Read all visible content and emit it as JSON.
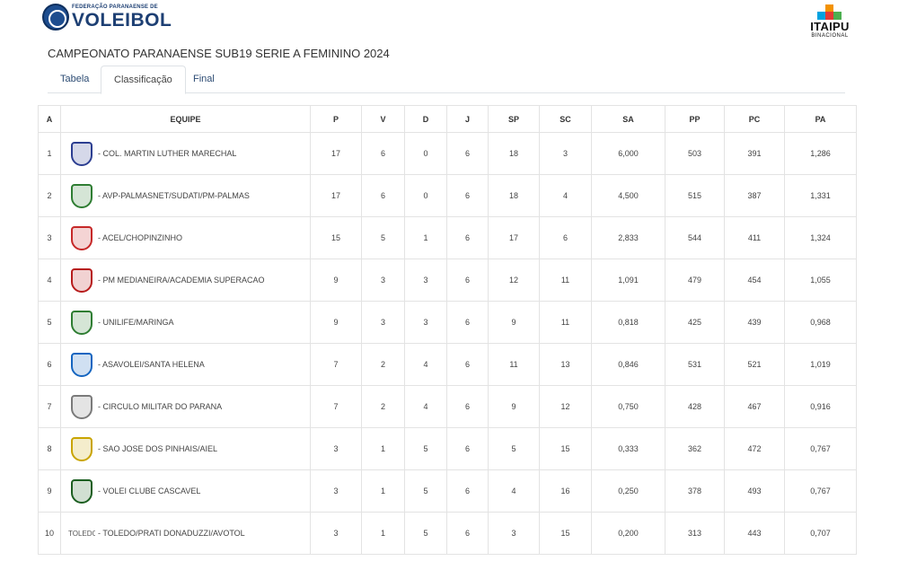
{
  "header": {
    "fpv_small": "FEDERAÇÃO PARANAENSE DE",
    "fpv_big": "VOLEIBOL",
    "sponsor_name": "ITAIPU",
    "sponsor_sub": "BINACIONAL"
  },
  "title": "CAMPEONATO PARANAENSE SUB19 SERIE A FEMININO 2024",
  "tabs": [
    {
      "label": "Tabela",
      "active": false
    },
    {
      "label": "Classificação",
      "active": true
    },
    {
      "label": "Final",
      "active": false
    }
  ],
  "columns": {
    "team": [
      "A",
      "EQUIPE"
    ],
    "stats": [
      "P",
      "V",
      "D",
      "J",
      "SP",
      "SC",
      "SA",
      "PP",
      "PC",
      "PA"
    ]
  },
  "rows": [
    {
      "pos": "1",
      "team": "- COL. MARTIN LUTHER MARECHAL",
      "logo_icon": "volleyball-v-logo-icon",
      "logo_color": "#2c3e91",
      "stats": [
        "17",
        "6",
        "0",
        "6",
        "18",
        "3",
        "6,000",
        "503",
        "391",
        "1,286"
      ]
    },
    {
      "pos": "2",
      "team": "- AVP-PALMASNET/SUDATI/PM-PALMAS",
      "logo_icon": "avp-wings-logo-icon",
      "logo_color": "#2e7d32",
      "stats": [
        "17",
        "6",
        "0",
        "6",
        "18",
        "4",
        "4,500",
        "515",
        "387",
        "1,331"
      ]
    },
    {
      "pos": "3",
      "team": "- ACEL/CHOPINZINHO",
      "logo_icon": "acel-shield-icon",
      "logo_color": "#c62828",
      "stats": [
        "15",
        "5",
        "1",
        "6",
        "17",
        "6",
        "2,833",
        "544",
        "411",
        "1,324"
      ]
    },
    {
      "pos": "4",
      "team": "- PM MEDIANEIRA/ACADEMIA SUPERACAO",
      "logo_icon": "city-coat-of-arms-icon",
      "logo_color": "#b71c1c",
      "stats": [
        "9",
        "3",
        "3",
        "6",
        "12",
        "11",
        "1,091",
        "479",
        "454",
        "1,055"
      ]
    },
    {
      "pos": "5",
      "team": "- UNILIFE/MARINGA",
      "logo_icon": "unilife-shield-icon",
      "logo_color": "#2e7d32",
      "stats": [
        "9",
        "3",
        "3",
        "6",
        "9",
        "11",
        "0,818",
        "425",
        "439",
        "0,968"
      ]
    },
    {
      "pos": "6",
      "team": "- ASAVOLEI/SANTA HELENA",
      "logo_icon": "asavolei-shield-icon",
      "logo_color": "#1565c0",
      "stats": [
        "7",
        "2",
        "4",
        "6",
        "11",
        "13",
        "0,846",
        "531",
        "521",
        "1,019"
      ]
    },
    {
      "pos": "7",
      "team": "- CIRCULO MILITAR DO PARANA",
      "logo_icon": "circulo-militar-emblem-icon",
      "logo_color": "#7a7a7a",
      "stats": [
        "7",
        "2",
        "4",
        "6",
        "9",
        "12",
        "0,750",
        "428",
        "467",
        "0,916"
      ]
    },
    {
      "pos": "8",
      "team": "- SAO JOSE DOS PINHAIS/AIEL",
      "logo_icon": "sjp-aiel-shield-icon",
      "logo_color": "#c9a400",
      "stats": [
        "3",
        "1",
        "5",
        "6",
        "5",
        "15",
        "0,333",
        "362",
        "472",
        "0,767"
      ]
    },
    {
      "pos": "9",
      "team": "- VOLEI CLUBE CASCAVEL",
      "logo_icon": "cascavel-shield-icon",
      "logo_color": "#1b5e20",
      "stats": [
        "3",
        "1",
        "5",
        "6",
        "4",
        "16",
        "0,250",
        "378",
        "493",
        "0,767"
      ]
    },
    {
      "pos": "10",
      "team": "- TOLEDO/PRATI DONADUZZI/AVOTOL",
      "logo_icon": "broken-image-icon",
      "logo_alt": "TOLEDO",
      "logo_color": "#999999",
      "stats": [
        "3",
        "1",
        "5",
        "6",
        "3",
        "15",
        "0,200",
        "313",
        "443",
        "0,707"
      ]
    }
  ]
}
